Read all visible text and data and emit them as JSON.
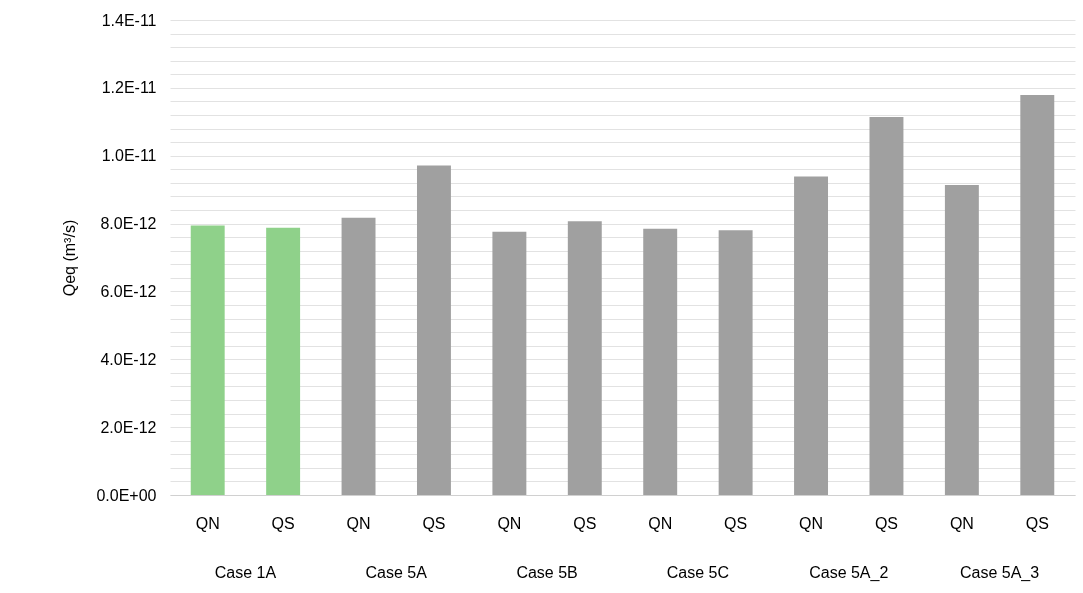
{
  "chart_data": {
    "type": "bar",
    "ylabel": "Qeq (m³/s)",
    "categories": [
      "QN",
      "QS",
      "QN",
      "QS",
      "QN",
      "QS",
      "QN",
      "QS",
      "QN",
      "QS",
      "QN",
      "QS"
    ],
    "values": [
      7.94e-12,
      7.88e-12,
      8.17e-12,
      9.71e-12,
      7.76e-12,
      8.07e-12,
      7.85e-12,
      7.8e-12,
      9.39e-12,
      1.114e-11,
      9.14e-12,
      1.179e-11
    ],
    "colors": [
      "#8fd18a",
      "#8fd18a",
      "#a0a0a0",
      "#a0a0a0",
      "#a0a0a0",
      "#a0a0a0",
      "#a0a0a0",
      "#a0a0a0",
      "#a0a0a0",
      "#a0a0a0",
      "#a0a0a0",
      "#a0a0a0"
    ],
    "annotations": [
      "Case 1A",
      "Case 5A",
      "Case 5B",
      "Case 5C",
      "Case 5A_2",
      "Case 5A_3"
    ],
    "ylim": [
      0,
      1.4e-11
    ],
    "yticks": [
      {
        "value": 0,
        "label": "0.0E+00"
      },
      {
        "value": 4e-13,
        "label": null
      },
      {
        "value": 8e-13,
        "label": null
      },
      {
        "value": 1.2e-12,
        "label": null
      },
      {
        "value": 1.6e-12,
        "label": null
      },
      {
        "value": 2e-12,
        "label": "2.0E-12"
      },
      {
        "value": 2.4e-12,
        "label": null
      },
      {
        "value": 2.8e-12,
        "label": null
      },
      {
        "value": 3.2e-12,
        "label": null
      },
      {
        "value": 3.6e-12,
        "label": null
      },
      {
        "value": 4e-12,
        "label": "4.0E-12"
      },
      {
        "value": 4.4e-12,
        "label": null
      },
      {
        "value": 4.8e-12,
        "label": null
      },
      {
        "value": 5.2e-12,
        "label": null
      },
      {
        "value": 5.6e-12,
        "label": null
      },
      {
        "value": 6e-12,
        "label": "6.0E-12"
      },
      {
        "value": 6.4e-12,
        "label": null
      },
      {
        "value": 6.8e-12,
        "label": null
      },
      {
        "value": 7.2e-12,
        "label": null
      },
      {
        "value": 7.6e-12,
        "label": null
      },
      {
        "value": 8e-12,
        "label": "8.0E-12"
      },
      {
        "value": 8.4e-12,
        "label": null
      },
      {
        "value": 8.8e-12,
        "label": null
      },
      {
        "value": 9.2e-12,
        "label": null
      },
      {
        "value": 9.6e-12,
        "label": null
      },
      {
        "value": 1e-11,
        "label": "1.0E-11"
      },
      {
        "value": 1.04e-11,
        "label": null
      },
      {
        "value": 1.08e-11,
        "label": null
      },
      {
        "value": 1.12e-11,
        "label": null
      },
      {
        "value": 1.16e-11,
        "label": null
      },
      {
        "value": 1.2e-11,
        "label": "1.2E-11"
      },
      {
        "value": 1.24e-11,
        "label": null
      },
      {
        "value": 1.28e-11,
        "label": null
      },
      {
        "value": 1.32e-11,
        "label": null
      },
      {
        "value": 1.36e-11,
        "label": null
      },
      {
        "value": 1.4e-11,
        "label": "1.4E-11"
      }
    ],
    "grid": true
  }
}
